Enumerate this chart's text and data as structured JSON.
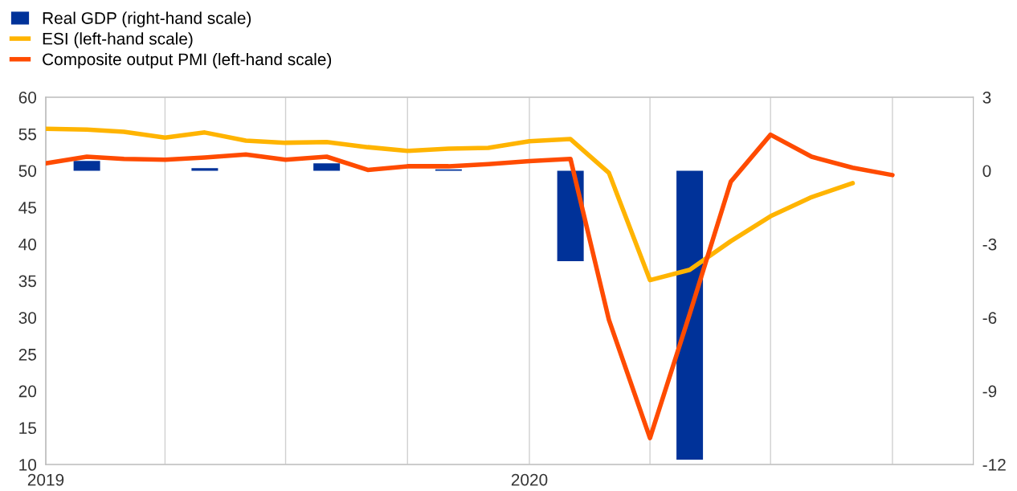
{
  "chart_data": {
    "type": "line",
    "xlim": [
      "2019-01",
      "2020-12"
    ],
    "xticks": [
      {
        "value": "2019-01",
        "label": "2019"
      },
      {
        "value": "2019-04",
        "label": null
      },
      {
        "value": "2019-07",
        "label": null
      },
      {
        "value": "2019-10",
        "label": null
      },
      {
        "value": "2020-01",
        "label": "2020"
      },
      {
        "value": "2020-04",
        "label": null
      },
      {
        "value": "2020-07",
        "label": null
      },
      {
        "value": "2020-10",
        "label": null
      }
    ],
    "ylim": [
      10,
      60
    ],
    "yticks": [
      10,
      15,
      20,
      25,
      30,
      35,
      40,
      45,
      50,
      55,
      60
    ],
    "y2lim": [
      -12,
      3
    ],
    "y2ticks": [
      -12,
      -9,
      -6,
      -3,
      0,
      3
    ],
    "grid": "x",
    "legend": "top left",
    "series": [
      {
        "name": "Real GDP (right-hand scale)",
        "type": "bar",
        "axis": "y2",
        "color": "#003299",
        "x": [
          "2019-02",
          "2019-05",
          "2019-08",
          "2019-11",
          "2020-02",
          "2020-05"
        ],
        "values": [
          0.4,
          0.1,
          0.3,
          0.05,
          -3.7,
          -11.8
        ]
      },
      {
        "name": "ESI (left-hand scale)",
        "color": "#ffb400",
        "x": [
          "2019-01",
          "2019-02",
          "2019-03",
          "2019-04",
          "2019-05",
          "2019-06",
          "2019-07",
          "2019-08",
          "2019-09",
          "2019-10",
          "2019-11",
          "2019-12",
          "2020-01",
          "2020-02",
          "2020-03",
          "2020-04",
          "2020-05",
          "2020-06",
          "2020-07",
          "2020-08",
          "2020-09"
        ],
        "values": [
          55.7,
          55.6,
          55.3,
          54.5,
          55.2,
          54.1,
          53.8,
          53.9,
          53.2,
          52.7,
          53.0,
          53.1,
          54.0,
          54.3,
          49.7,
          35.1,
          36.5,
          40.4,
          43.8,
          46.4,
          48.3
        ]
      },
      {
        "name": "Composite output PMI (left-hand scale)",
        "color": "#ff4b00",
        "x": [
          "2019-01",
          "2019-02",
          "2019-03",
          "2019-04",
          "2019-05",
          "2019-06",
          "2019-07",
          "2019-08",
          "2019-09",
          "2019-10",
          "2019-11",
          "2019-12",
          "2020-01",
          "2020-02",
          "2020-03",
          "2020-04",
          "2020-05",
          "2020-06",
          "2020-07",
          "2020-08",
          "2020-09",
          "2020-10"
        ],
        "values": [
          51.0,
          51.9,
          51.6,
          51.5,
          51.8,
          52.2,
          51.5,
          51.9,
          50.1,
          50.6,
          50.6,
          50.9,
          51.3,
          51.6,
          29.7,
          13.6,
          30.5,
          48.5,
          54.9,
          51.9,
          50.4,
          49.4
        ]
      }
    ]
  }
}
